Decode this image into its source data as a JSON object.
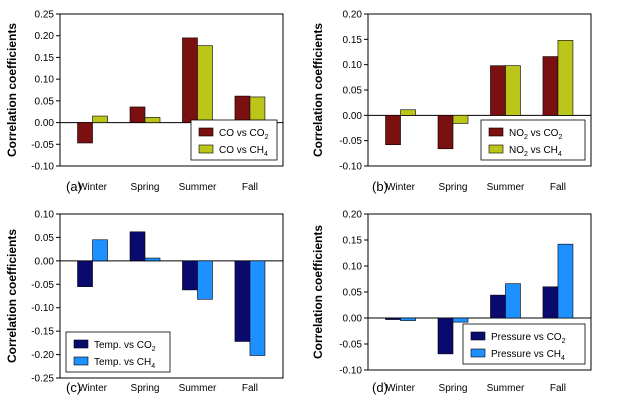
{
  "chart_data": [
    {
      "type": "bar",
      "panel_label": "(a)",
      "ylabel": "Correlation coefficients",
      "categories": [
        "Winter",
        "Spring",
        "Summer",
        "Fall"
      ],
      "ylim": [
        -0.1,
        0.25
      ],
      "yticks": [
        -0.1,
        -0.05,
        0.0,
        0.05,
        0.1,
        0.15,
        0.2,
        0.25
      ],
      "yticklabels": [
        "-0.10",
        "-0.05",
        "0.00",
        "0.05",
        "0.10",
        "0.15",
        "0.20",
        "0.25"
      ],
      "legend_position": "bottom-right",
      "series": [
        {
          "name": "CO vs CO2",
          "label_main": "CO vs CO",
          "label_sub": "2",
          "color": "#7b1010",
          "values": [
            -0.047,
            0.036,
            0.195,
            0.061
          ]
        },
        {
          "name": "CO vs CH4",
          "label_main": "CO vs CH",
          "label_sub": "4",
          "color": "#bcc61a",
          "values": [
            0.015,
            0.012,
            0.177,
            0.059
          ]
        }
      ]
    },
    {
      "type": "bar",
      "panel_label": "(b)",
      "ylabel": "Correlation coefficients",
      "categories": [
        "Winter",
        "Spring",
        "Summer",
        "Fall"
      ],
      "ylim": [
        -0.1,
        0.2
      ],
      "yticks": [
        -0.1,
        -0.05,
        0.0,
        0.05,
        0.1,
        0.15,
        0.2
      ],
      "yticklabels": [
        "-0.10",
        "-0.05",
        "0.00",
        "0.05",
        "0.10",
        "0.15",
        "0.20"
      ],
      "legend_position": "bottom-right",
      "series": [
        {
          "name": "NO2 vs CO2",
          "label_main": "NO",
          "label_mid": " vs CO",
          "label_sub1": "2",
          "label_sub": "2",
          "color": "#7b1010",
          "values": [
            -0.058,
            -0.066,
            0.098,
            0.116
          ]
        },
        {
          "name": "NO2 vs CH4",
          "label_main": "NO",
          "label_mid": " vs CH",
          "label_sub1": "2",
          "label_sub": "4",
          "color": "#bcc61a",
          "values": [
            0.011,
            -0.016,
            0.098,
            0.148
          ]
        }
      ]
    },
    {
      "type": "bar",
      "panel_label": "(c)",
      "ylabel": "Correlation coefficients",
      "categories": [
        "Winter",
        "Spring",
        "Summer",
        "Fall"
      ],
      "ylim": [
        -0.25,
        0.1
      ],
      "yticks": [
        -0.25,
        -0.2,
        -0.15,
        -0.1,
        -0.05,
        0.0,
        0.05,
        0.1
      ],
      "yticklabels": [
        "-0.25",
        "-0.20",
        "-0.15",
        "-0.10",
        "-0.05",
        "0.00",
        "0.05",
        "0.10"
      ],
      "legend_position": "bottom-left",
      "series": [
        {
          "name": "Temp. vs CO2",
          "label_main": "Temp. vs CO",
          "label_sub": "2",
          "color": "#0a0a6e",
          "values": [
            -0.055,
            0.062,
            -0.062,
            -0.172
          ]
        },
        {
          "name": "Temp. vs CH4",
          "label_main": "Temp. vs CH",
          "label_sub": "4",
          "color": "#1e90ff",
          "values": [
            0.045,
            0.006,
            -0.082,
            -0.202
          ]
        }
      ]
    },
    {
      "type": "bar",
      "panel_label": "(d)",
      "ylabel": "Correlation coefficients",
      "categories": [
        "Winter",
        "Spring",
        "Summer",
        "Fall"
      ],
      "ylim": [
        -0.1,
        0.2
      ],
      "yticks": [
        -0.1,
        -0.05,
        0.0,
        0.05,
        0.1,
        0.15,
        0.2
      ],
      "yticklabels": [
        "-0.10",
        "-0.05",
        "0.00",
        "0.05",
        "0.10",
        "0.15",
        "0.20"
      ],
      "legend_position": "bottom-right",
      "series": [
        {
          "name": "Pressure vs CO2",
          "label_main": "Pressure vs CO",
          "label_sub": "2",
          "color": "#0a0a6e",
          "values": [
            -0.003,
            -0.069,
            0.044,
            0.06
          ]
        },
        {
          "name": "Pressure vs CH4",
          "label_main": "Pressure vs CH",
          "label_sub": "4",
          "color": "#1e90ff",
          "values": [
            -0.005,
            -0.008,
            0.066,
            0.142
          ]
        }
      ]
    }
  ]
}
